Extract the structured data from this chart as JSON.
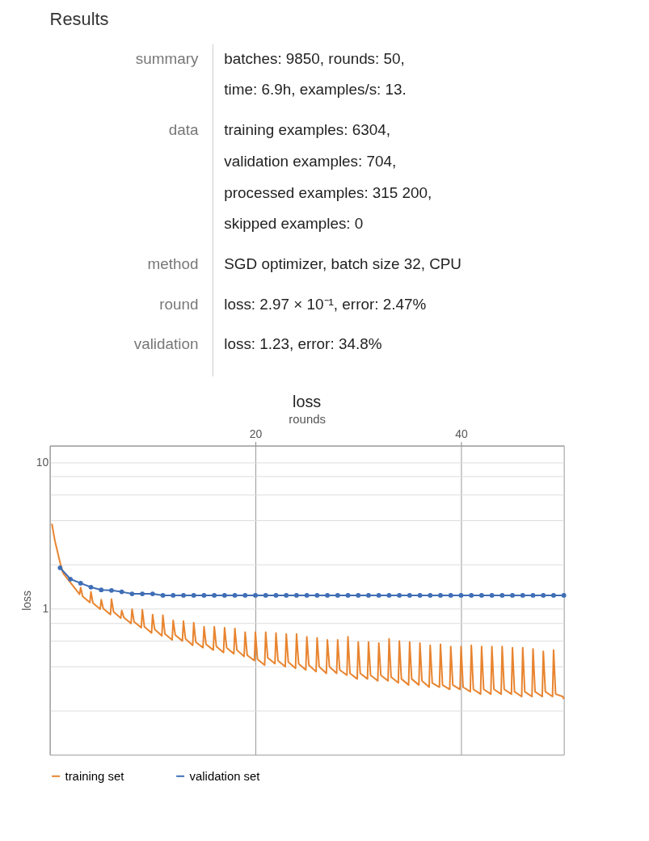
{
  "chart_data": [
    {
      "type": "other",
      "title": "Results",
      "categories": [
        "summary",
        "data",
        "method",
        "round",
        "validation"
      ],
      "annotations": [
        "batches: 9850, rounds: 50,\ntime: 6.9h, examples/s: 13.",
        "training examples: 6304,\nvalidation examples: 704,\nprocessed examples: 315 200,\nskipped examples: 0",
        "SGD optimizer, batch size 32, CPU",
        "loss: 2.97 × 10⁻¹, error: 2.47%",
        "loss: 1.23, error: 34.8%"
      ]
    },
    {
      "type": "line",
      "title": "loss",
      "xlabel": "rounds",
      "ylabel": "loss",
      "xlim": [
        0,
        50
      ],
      "xticks": [
        20,
        40
      ],
      "log": true,
      "ylim": [
        0.1,
        13
      ],
      "yticks": [
        {
          "value": 0.2,
          "label": null
        },
        {
          "value": 0.4,
          "label": null
        },
        {
          "value": 0.6,
          "label": null
        },
        {
          "value": 0.8,
          "label": null
        },
        1,
        {
          "value": 2,
          "label": null
        },
        {
          "value": 4,
          "label": null
        },
        {
          "value": 6,
          "label": null
        },
        {
          "value": 8,
          "label": null
        },
        10
      ],
      "grid": true,
      "legend": "bottom",
      "line_style": "solid",
      "series": [
        {
          "name": "training set",
          "color": "#e8842f",
          "marker": "none",
          "x": [
            0.2,
            0.5,
            1,
            1.3,
            1.9,
            2.5,
            2.9,
            3,
            3.2,
            3.9,
            4,
            4.2,
            4.9,
            5,
            5.2,
            5.9,
            6,
            6.2,
            6.9,
            7,
            7.2,
            7.9,
            8,
            8.2,
            8.9,
            9,
            9.2,
            9.9,
            10,
            10.2,
            10.9,
            11,
            11.2,
            11.9,
            12,
            12.2,
            12.9,
            13,
            13.2,
            13.9,
            14,
            14.2,
            14.9,
            15,
            15.2,
            15.9,
            16,
            16.2,
            16.9,
            17,
            17.2,
            17.9,
            18,
            18.2,
            18.9,
            19,
            19.2,
            19.9,
            20,
            20.2,
            20.9,
            21,
            21.2,
            21.9,
            22,
            22.2,
            22.9,
            23,
            23.2,
            23.9,
            24,
            24.2,
            24.9,
            25,
            25.2,
            25.9,
            26,
            26.2,
            26.9,
            27,
            27.2,
            27.9,
            28,
            28.2,
            28.9,
            29,
            29.2,
            29.9,
            30,
            30.2,
            30.9,
            31,
            31.2,
            31.9,
            32,
            32.2,
            32.9,
            33,
            33.2,
            33.9,
            34,
            34.2,
            34.9,
            35,
            35.2,
            35.9,
            36,
            36.2,
            36.9,
            37,
            37.2,
            37.9,
            38,
            38.2,
            38.9,
            39,
            39.2,
            39.9,
            40,
            40.2,
            40.9,
            41,
            41.2,
            41.9,
            42,
            42.2,
            42.9,
            43,
            43.2,
            43.9,
            44,
            44.2,
            44.9,
            45,
            45.2,
            45.9,
            46,
            46.2,
            46.9,
            47,
            47.2,
            47.9,
            48,
            48.2,
            48.9,
            49,
            49.2,
            49.9,
            50
          ],
          "values": [
            3.8,
            2.9,
            2.06,
            1.74,
            1.54,
            1.36,
            1.25,
            1.39,
            1.21,
            1.1,
            1.3,
            1.09,
            0.99,
            1.15,
            1.0,
            0.91,
            1.16,
            0.95,
            0.86,
            0.97,
            0.87,
            0.79,
            0.99,
            0.81,
            0.74,
            0.98,
            0.75,
            0.68,
            0.91,
            0.72,
            0.65,
            0.9,
            0.67,
            0.61,
            0.83,
            0.66,
            0.6,
            0.82,
            0.62,
            0.56,
            0.8,
            0.59,
            0.54,
            0.75,
            0.57,
            0.52,
            0.75,
            0.55,
            0.5,
            0.74,
            0.54,
            0.49,
            0.73,
            0.52,
            0.47,
            0.69,
            0.48,
            0.44,
            0.69,
            0.45,
            0.41,
            0.69,
            0.46,
            0.42,
            0.68,
            0.44,
            0.4,
            0.67,
            0.43,
            0.39,
            0.67,
            0.42,
            0.38,
            0.64,
            0.41,
            0.37,
            0.63,
            0.4,
            0.36,
            0.61,
            0.4,
            0.36,
            0.61,
            0.38,
            0.35,
            0.64,
            0.36,
            0.33,
            0.59,
            0.36,
            0.33,
            0.59,
            0.35,
            0.32,
            0.58,
            0.35,
            0.32,
            0.62,
            0.34,
            0.31,
            0.6,
            0.33,
            0.3,
            0.59,
            0.33,
            0.3,
            0.58,
            0.32,
            0.29,
            0.56,
            0.31,
            0.29,
            0.57,
            0.3,
            0.28,
            0.55,
            0.3,
            0.28,
            0.55,
            0.29,
            0.27,
            0.56,
            0.28,
            0.26,
            0.55,
            0.28,
            0.26,
            0.55,
            0.28,
            0.26,
            0.55,
            0.28,
            0.26,
            0.54,
            0.27,
            0.25,
            0.54,
            0.27,
            0.25,
            0.53,
            0.27,
            0.25,
            0.51,
            0.27,
            0.25,
            0.52,
            0.26,
            0.25,
            0.24
          ]
        },
        {
          "name": "validation set",
          "color": "#3f6eb5",
          "marker": "circle",
          "x": [
            1,
            2,
            3,
            4,
            5,
            6,
            7,
            8,
            9,
            10,
            11,
            12,
            13,
            14,
            15,
            16,
            17,
            18,
            19,
            20,
            21,
            22,
            23,
            24,
            25,
            26,
            27,
            28,
            29,
            30,
            31,
            32,
            33,
            34,
            35,
            36,
            37,
            38,
            39,
            40,
            41,
            42,
            43,
            44,
            45,
            46,
            47,
            48,
            49,
            50
          ],
          "values": [
            1.9,
            1.59,
            1.49,
            1.4,
            1.34,
            1.33,
            1.3,
            1.26,
            1.26,
            1.26,
            1.23,
            1.23,
            1.23,
            1.23,
            1.23,
            1.23,
            1.23,
            1.23,
            1.23,
            1.23,
            1.23,
            1.23,
            1.23,
            1.23,
            1.23,
            1.23,
            1.23,
            1.23,
            1.23,
            1.23,
            1.23,
            1.23,
            1.23,
            1.23,
            1.23,
            1.23,
            1.23,
            1.23,
            1.23,
            1.23,
            1.23,
            1.23,
            1.23,
            1.23,
            1.23,
            1.23,
            1.23,
            1.23,
            1.23,
            1.23
          ]
        }
      ]
    }
  ]
}
